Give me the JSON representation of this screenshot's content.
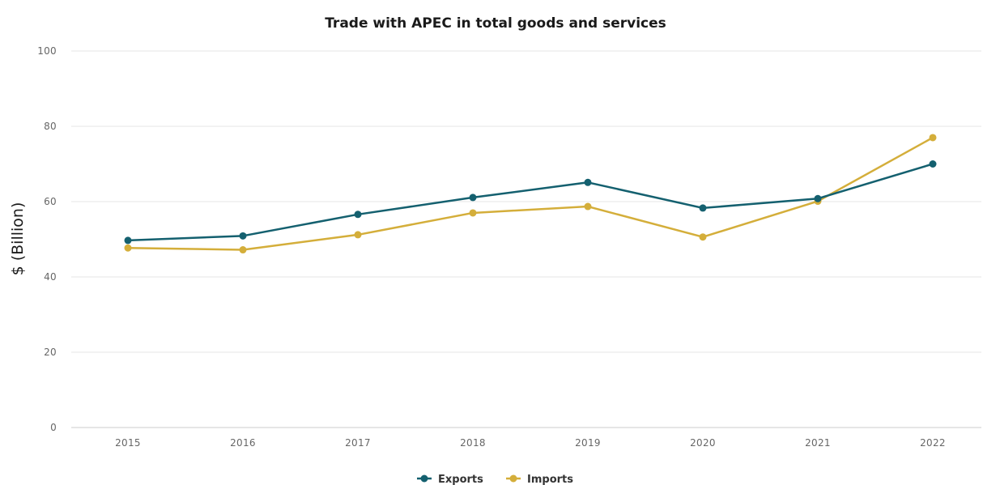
{
  "chart_data": {
    "type": "line",
    "title": "Trade with APEC in total goods and services",
    "xlabel": "",
    "ylabel": "$ (Billion)",
    "x": [
      "2015",
      "2016",
      "2017",
      "2018",
      "2019",
      "2020",
      "2021",
      "2022"
    ],
    "ylim": [
      0,
      100
    ],
    "yticks": [
      0,
      20,
      40,
      60,
      80,
      100
    ],
    "grid": true,
    "legend_position": "bottom-center",
    "series": [
      {
        "name": "Exports",
        "color": "#14606f",
        "values": [
          49.7,
          50.9,
          56.6,
          61.1,
          65.1,
          58.3,
          60.8,
          70.0
        ]
      },
      {
        "name": "Imports",
        "color": "#d4ae3a",
        "values": [
          47.7,
          47.2,
          51.2,
          57.0,
          58.7,
          50.6,
          60.1,
          77.0
        ]
      }
    ]
  }
}
